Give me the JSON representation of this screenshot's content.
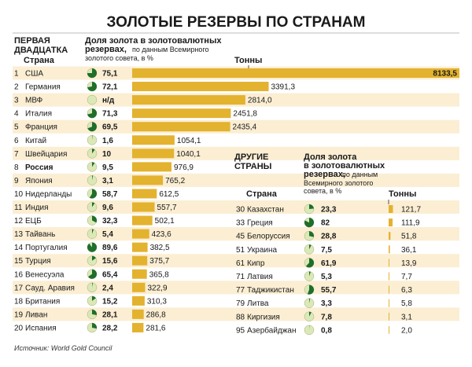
{
  "title": "ЗОЛОТЫЕ РЕЗЕРВЫ ПО СТРАНАМ",
  "colors": {
    "bar": "#e3b22f",
    "row_band": "#fbeed3",
    "pie_green": "#1f6e2c",
    "pie_bg": "#dce8b8",
    "title_rule": "#bbbbbb"
  },
  "left_headers": {
    "group_line1": "ПЕРВАЯ",
    "group_line2": "ДВАДЦАТКА",
    "country": "Страна",
    "share_title_line1": "Доля золота в золотовалютных",
    "share_title_line2": "резервах,",
    "share_note_line2": "по данным Всемирного",
    "share_note_line3": "золотого совета, в %",
    "tons": "Тонны"
  },
  "right_headers": {
    "group_line1": "ДРУГИЕ",
    "group_line2": "СТРАНЫ",
    "country": "Страна",
    "share_title_line1": "Доля золота",
    "share_title_line2": "в золотовалютных",
    "share_title_line3": "резервах,",
    "share_note_line3": "по данным",
    "share_note_line4": "Всемирного золотого",
    "share_note_line5": "совета, в %",
    "tons": "Тонны"
  },
  "source": "Источник: World Gold Council",
  "chart_data": {
    "type": "bar",
    "left_table": [
      {
        "rank": "1",
        "country": "США",
        "share": "75,1",
        "tons": "8133,5"
      },
      {
        "rank": "2",
        "country": "Германия",
        "share": "72,1",
        "tons": "3391,3"
      },
      {
        "rank": "3",
        "country": "МВФ",
        "share": "н/д",
        "tons": "2814,0"
      },
      {
        "rank": "4",
        "country": "Италия",
        "share": "71,3",
        "tons": "2451,8"
      },
      {
        "rank": "5",
        "country": "Франция",
        "share": "69,5",
        "tons": "2435,4"
      },
      {
        "rank": "6",
        "country": "Китай",
        "share": "1,6",
        "tons": "1054,1"
      },
      {
        "rank": "7",
        "country": "Швейцария",
        "share": "10",
        "tons": "1040,1"
      },
      {
        "rank": "8",
        "country": "Россия",
        "share": "9,5",
        "tons": "976,9"
      },
      {
        "rank": "9",
        "country": "Япония",
        "share": "3,1",
        "tons": "765,2"
      },
      {
        "rank": "10",
        "country": "Нидерланды",
        "share": "58,7",
        "tons": "612,5"
      },
      {
        "rank": "11",
        "country": "Индия",
        "share": "9,6",
        "tons": "557,7"
      },
      {
        "rank": "12",
        "country": "ЕЦБ",
        "share": "32,3",
        "tons": "502,1"
      },
      {
        "rank": "13",
        "country": "Тайвань",
        "share": "5,4",
        "tons": "423,6"
      },
      {
        "rank": "14",
        "country": "Португалия",
        "share": "89,6",
        "tons": "382,5"
      },
      {
        "rank": "15",
        "country": "Турция",
        "share": "15,6",
        "tons": "375,7"
      },
      {
        "rank": "16",
        "country": "Венесуэла",
        "share": "65,4",
        "tons": "365,8"
      },
      {
        "rank": "17",
        "country": "Сауд. Аравия",
        "share": "2,4",
        "tons": "322,9"
      },
      {
        "rank": "18",
        "country": "Британия",
        "share": "15,2",
        "tons": "310,3"
      },
      {
        "rank": "19",
        "country": "Ливан",
        "share": "28,1",
        "tons": "286,8"
      },
      {
        "rank": "20",
        "country": "Испания",
        "share": "28,2",
        "tons": "281,6"
      }
    ],
    "right_table": [
      {
        "rank": "30",
        "country": "Казахстан",
        "share": "23,3",
        "tons": "121,7"
      },
      {
        "rank": "33",
        "country": "Греция",
        "share": "82",
        "tons": "111,9"
      },
      {
        "rank": "45",
        "country": "Белоруссия",
        "share": "28,8",
        "tons": "51,8"
      },
      {
        "rank": "51",
        "country": "Украина",
        "share": "7,5",
        "tons": "36,1"
      },
      {
        "rank": "61",
        "country": "Кипр",
        "share": "61,9",
        "tons": "13,9"
      },
      {
        "rank": "71",
        "country": "Латвия",
        "share": "5,3",
        "tons": "7,7"
      },
      {
        "rank": "77",
        "country": "Таджикистан",
        "share": "55,7",
        "tons": "6,3"
      },
      {
        "rank": "79",
        "country": "Литва",
        "share": "3,3",
        "tons": "5,8"
      },
      {
        "rank": "88",
        "country": "Киргизия",
        "share": "7,8",
        "tons": "3,1"
      },
      {
        "rank": "95",
        "country": "Азербайджан",
        "share": "0,8",
        "tons": "2,0"
      }
    ]
  }
}
